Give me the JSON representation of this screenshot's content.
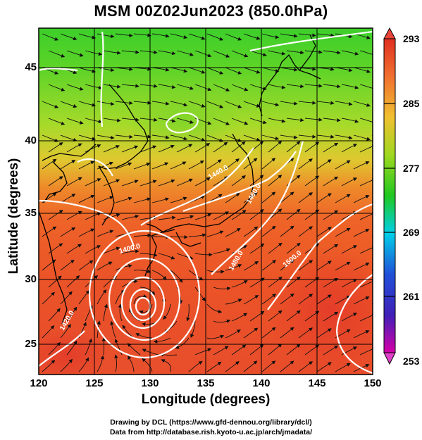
{
  "figure": {
    "title": "MSM 00Z02Jun2023 (850.0hPa)",
    "xlabel": "Longitude (degrees)",
    "ylabel": "Latitude  (degrees)",
    "x_ticks": [
      "120",
      "125",
      "130",
      "135",
      "140",
      "145",
      "150"
    ],
    "y_ticks": [
      "45",
      "40",
      "35",
      "30",
      "25"
    ],
    "colorbar_ticks": [
      "293",
      "285",
      "277",
      "269",
      "261",
      "253"
    ],
    "contour_labels": [
      "1440.0",
      "1460.0",
      "1480.0",
      "1500.0",
      "1400.0",
      "1420.0"
    ],
    "credit_line1": "Drawing by DCL (https://www.gfd-dennou.org/library/dcl/)",
    "credit_line2": "Data from http://database.rish.kyoto-u.ac.jp/arch/jmadata/"
  },
  "chart_data": {
    "type": "heatmap",
    "title": "MSM 00Z02Jun2023 (850.0hPa)",
    "xlabel": "Longitude (degrees)",
    "ylabel": "Latitude  (degrees)",
    "xlim": [
      120,
      150
    ],
    "ylim": [
      22.5,
      47.5
    ],
    "x_ticks": [
      120,
      125,
      130,
      135,
      140,
      145,
      150
    ],
    "y_ticks": [
      25,
      30,
      35,
      40,
      45
    ],
    "colorbar": {
      "range": [
        253,
        293
      ],
      "ticks": [
        253,
        261,
        269,
        277,
        285,
        293
      ],
      "colors": [
        "#d600a8",
        "#2030c8",
        "#00d0e8",
        "#20c820",
        "#e8d820",
        "#e03020"
      ]
    },
    "fields": {
      "shading": "temperature (K)",
      "contours": "geopotential height (m)",
      "streamlines": "wind"
    },
    "typhoon_center": {
      "lon": 129.7,
      "lat": 27.8
    },
    "contour_labels": [
      "1440.0",
      "1460.0",
      "1480.0",
      "1500.0",
      "1400.0",
      "1420.0"
    ],
    "grid": true
  }
}
